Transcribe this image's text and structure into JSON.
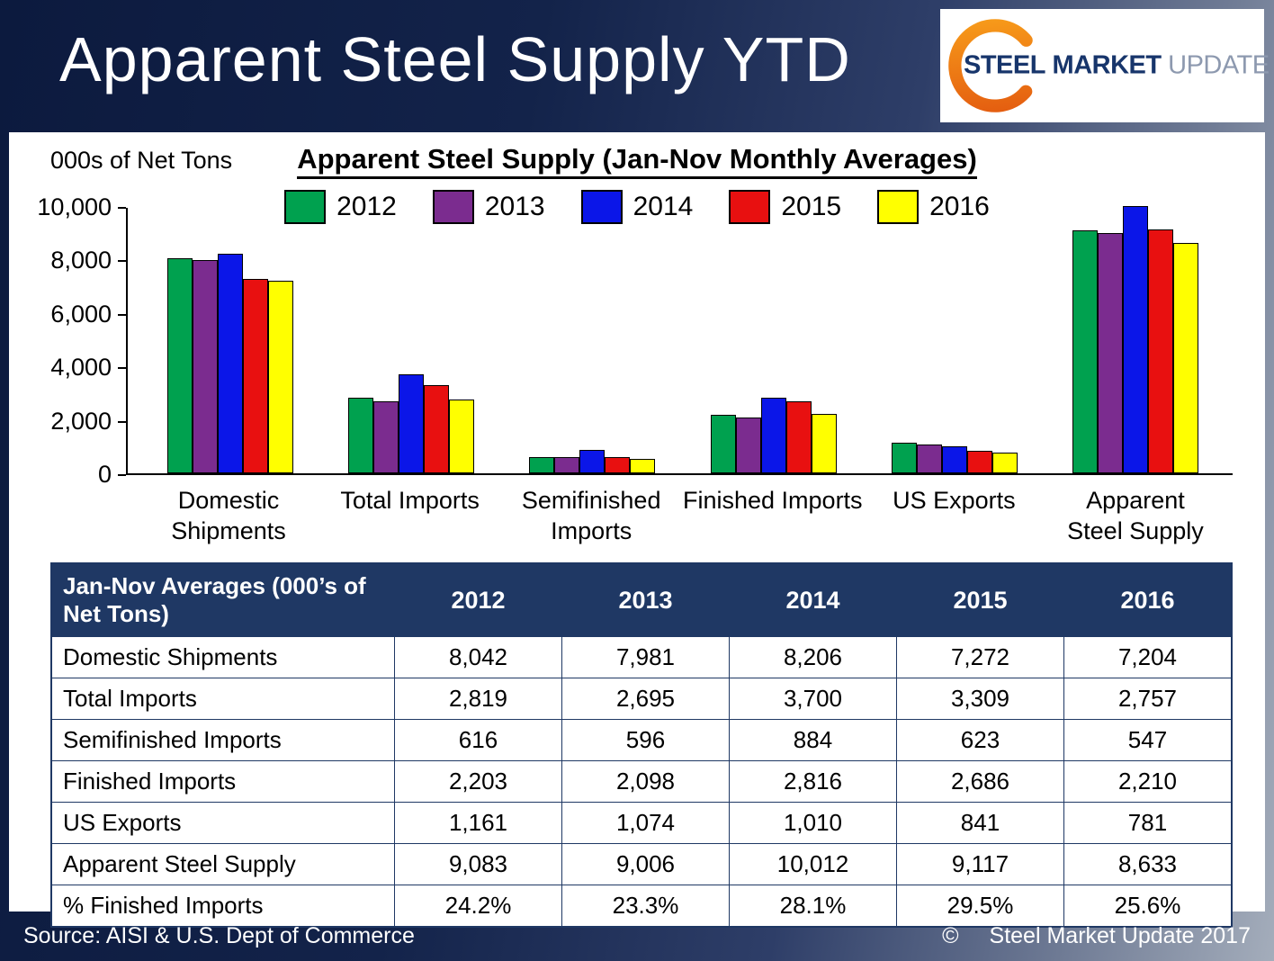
{
  "page": {
    "title": "Apparent Steel Supply YTD"
  },
  "logo": {
    "steel": "STEEL",
    "market": "MARKET",
    "update": "UPDATE"
  },
  "chart": {
    "units_label": "000s of Net Tons",
    "title": "Apparent Steel Supply (Jan-Nov Monthly Averages)",
    "y_ticks_top_to_bottom": [
      "10,000",
      "8,000",
      "6,000",
      "4,000",
      "2,000",
      "0"
    ],
    "category_labels": [
      "Domestic\nShipments",
      "Total Imports",
      "Semifinished\nImports",
      "Finished Imports",
      "US Exports",
      "Apparent\nSteel Supply"
    ]
  },
  "chart_data": {
    "type": "bar",
    "title": "Apparent Steel Supply (Jan-Nov Monthly Averages)",
    "categories": [
      "Domestic Shipments",
      "Total Imports",
      "Semifinished Imports",
      "Finished Imports",
      "US Exports",
      "Apparent Steel Supply"
    ],
    "series": [
      {
        "name": "2012",
        "color": "#00A14F",
        "values": [
          8042,
          2819,
          616,
          2203,
          1161,
          9083
        ]
      },
      {
        "name": "2013",
        "color": "#7B2C8F",
        "values": [
          7981,
          2695,
          596,
          2098,
          1074,
          9006
        ]
      },
      {
        "name": "2014",
        "color": "#0B16E8",
        "values": [
          8206,
          3700,
          884,
          2816,
          1010,
          10012
        ]
      },
      {
        "name": "2015",
        "color": "#E81010",
        "values": [
          7272,
          3309,
          623,
          2686,
          841,
          9117
        ]
      },
      {
        "name": "2016",
        "color": "#FFFF00",
        "values": [
          7204,
          2757,
          547,
          2210,
          781,
          8633
        ]
      }
    ],
    "ylabel": "000s of Net Tons",
    "ylim": [
      0,
      10000
    ],
    "grid": false,
    "legend_position": "top"
  },
  "table": {
    "header": [
      "Jan-Nov Averages (000’s of Net Tons)",
      "2012",
      "2013",
      "2014",
      "2015",
      "2016"
    ],
    "rows": [
      {
        "label": "Domestic Shipments",
        "values": [
          "8,042",
          "7,981",
          "8,206",
          "7,272",
          "7,204"
        ]
      },
      {
        "label": "Total Imports",
        "values": [
          "2,819",
          "2,695",
          "3,700",
          "3,309",
          "2,757"
        ]
      },
      {
        "label": "Semifinished Imports",
        "values": [
          "616",
          "596",
          "884",
          "623",
          "547"
        ]
      },
      {
        "label": "Finished Imports",
        "values": [
          "2,203",
          "2,098",
          "2,816",
          "2,686",
          "2,210"
        ]
      },
      {
        "label": "US Exports",
        "values": [
          "1,161",
          "1,074",
          "1,010",
          "841",
          "781"
        ]
      },
      {
        "label": "Apparent Steel Supply",
        "values": [
          "9,083",
          "9,006",
          "10,012",
          "9,117",
          "8,633"
        ]
      },
      {
        "label": "% Finished Imports",
        "values": [
          "24.2%",
          "23.3%",
          "28.1%",
          "29.5%",
          "25.6%"
        ]
      }
    ]
  },
  "footer": {
    "source": "Source:  AISI & U.S. Dept of Commerce",
    "copyright_symbol": "©",
    "copyright_text": "Steel Market Update 2017"
  }
}
